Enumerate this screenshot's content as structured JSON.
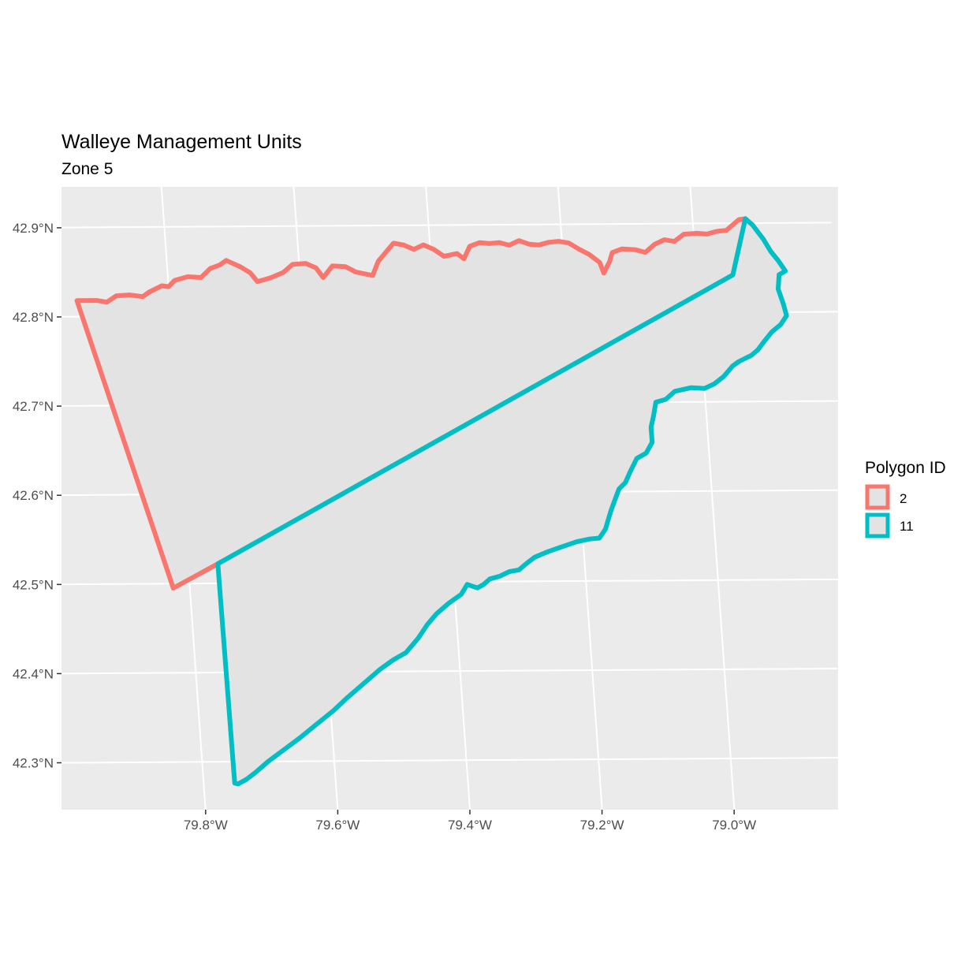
{
  "chart_data": {
    "type": "map",
    "title": "Walleye Management Units",
    "subtitle": "Zone 5",
    "xlabel": "",
    "ylabel": "",
    "x_ticks": [
      "79.8°W",
      "79.6°W",
      "79.4°W",
      "79.2°W",
      "79.0°W"
    ],
    "x_tick_values": [
      -79.8,
      -79.6,
      -79.4,
      -79.2,
      -79.0
    ],
    "y_ticks": [
      "42.3°N",
      "42.4°N",
      "42.5°N",
      "42.6°N",
      "42.7°N",
      "42.8°N",
      "42.9°N"
    ],
    "y_tick_values": [
      42.3,
      42.4,
      42.5,
      42.6,
      42.7,
      42.8,
      42.9
    ],
    "xlim": [
      -79.99,
      -78.84
    ],
    "ylim": [
      42.25,
      42.94
    ],
    "grid": true,
    "legend": {
      "title": "Polygon ID",
      "position": "right",
      "entries": [
        {
          "label": "2",
          "color": "#F8766D"
        },
        {
          "label": "11",
          "color": "#00BFC4"
        }
      ]
    },
    "series": [
      {
        "name": "2",
        "color": "#F8766D",
        "points": [
          [
            -79.94,
            42.818
          ],
          [
            -79.91,
            42.818
          ],
          [
            -79.895,
            42.816
          ],
          [
            -79.88,
            42.823
          ],
          [
            -79.86,
            42.824
          ],
          [
            -79.84,
            42.822
          ],
          [
            -79.83,
            42.827
          ],
          [
            -79.81,
            42.834
          ],
          [
            -79.8,
            42.833
          ],
          [
            -79.79,
            42.84
          ],
          [
            -79.77,
            42.844
          ],
          [
            -79.75,
            42.843
          ],
          [
            -79.735,
            42.853
          ],
          [
            -79.72,
            42.857
          ],
          [
            -79.71,
            42.862
          ],
          [
            -79.69,
            42.855
          ],
          [
            -79.675,
            42.848
          ],
          [
            -79.665,
            42.838
          ],
          [
            -79.645,
            42.842
          ],
          [
            -79.625,
            42.848
          ],
          [
            -79.61,
            42.857
          ],
          [
            -79.59,
            42.858
          ],
          [
            -79.575,
            42.853
          ],
          [
            -79.565,
            42.842
          ],
          [
            -79.55,
            42.855
          ],
          [
            -79.53,
            42.854
          ],
          [
            -79.515,
            42.848
          ],
          [
            -79.49,
            42.844
          ],
          [
            -79.48,
            42.86
          ],
          [
            -79.465,
            42.872
          ],
          [
            -79.455,
            42.88
          ],
          [
            -79.44,
            42.878
          ],
          [
            -79.425,
            42.873
          ],
          [
            -79.41,
            42.878
          ],
          [
            -79.395,
            42.873
          ],
          [
            -79.38,
            42.865
          ],
          [
            -79.36,
            42.868
          ],
          [
            -79.35,
            42.862
          ],
          [
            -79.34,
            42.876
          ],
          [
            -79.325,
            42.88
          ],
          [
            -79.31,
            42.879
          ],
          [
            -79.295,
            42.88
          ],
          [
            -79.28,
            42.877
          ],
          [
            -79.265,
            42.882
          ],
          [
            -79.25,
            42.878
          ],
          [
            -79.235,
            42.877
          ],
          [
            -79.22,
            42.88
          ],
          [
            -79.205,
            42.881
          ],
          [
            -79.19,
            42.879
          ],
          [
            -79.175,
            42.872
          ],
          [
            -79.16,
            42.866
          ],
          [
            -79.145,
            42.857
          ],
          [
            -79.14,
            42.845
          ],
          [
            -79.13,
            42.858
          ],
          [
            -79.125,
            42.868
          ],
          [
            -79.11,
            42.872
          ],
          [
            -79.09,
            42.871
          ],
          [
            -79.075,
            42.868
          ],
          [
            -79.06,
            42.877
          ],
          [
            -79.045,
            42.882
          ],
          [
            -79.03,
            42.88
          ],
          [
            -79.015,
            42.888
          ],
          [
            -78.995,
            42.889
          ],
          [
            -78.98,
            42.888
          ],
          [
            -78.965,
            42.891
          ],
          [
            -78.95,
            42.892
          ],
          [
            -78.93,
            42.904
          ],
          [
            -78.92,
            42.905
          ],
          [
            -78.945,
            42.842
          ],
          [
            -79.755,
            42.522
          ],
          [
            -79.825,
            42.495
          ],
          [
            -79.94,
            42.818
          ]
        ]
      },
      {
        "name": "11",
        "color": "#00BFC4",
        "points": [
          [
            -79.755,
            42.522
          ],
          [
            -78.945,
            42.842
          ],
          [
            -78.92,
            42.905
          ],
          [
            -78.91,
            42.898
          ],
          [
            -78.895,
            42.882
          ],
          [
            -78.885,
            42.868
          ],
          [
            -78.875,
            42.858
          ],
          [
            -78.865,
            42.846
          ],
          [
            -78.875,
            42.842
          ],
          [
            -78.878,
            42.826
          ],
          [
            -78.872,
            42.81
          ],
          [
            -78.868,
            42.796
          ],
          [
            -78.878,
            42.786
          ],
          [
            -78.892,
            42.778
          ],
          [
            -78.905,
            42.767
          ],
          [
            -78.915,
            42.758
          ],
          [
            -78.925,
            42.752
          ],
          [
            -78.945,
            42.745
          ],
          [
            -78.955,
            42.74
          ],
          [
            -78.97,
            42.728
          ],
          [
            -78.985,
            42.72
          ],
          [
            -79.0,
            42.715
          ],
          [
            -79.02,
            42.716
          ],
          [
            -79.045,
            42.712
          ],
          [
            -79.06,
            42.703
          ],
          [
            -79.075,
            42.7
          ],
          [
            -79.08,
            42.685
          ],
          [
            -79.085,
            42.672
          ],
          [
            -79.085,
            42.655
          ],
          [
            -79.095,
            42.643
          ],
          [
            -79.11,
            42.637
          ],
          [
            -79.12,
            42.624
          ],
          [
            -79.13,
            42.61
          ],
          [
            -79.14,
            42.603
          ],
          [
            -79.148,
            42.59
          ],
          [
            -79.155,
            42.578
          ],
          [
            -79.165,
            42.558
          ],
          [
            -79.175,
            42.548
          ],
          [
            -79.19,
            42.547
          ],
          [
            -79.21,
            42.544
          ],
          [
            -79.235,
            42.538
          ],
          [
            -79.255,
            42.533
          ],
          [
            -79.275,
            42.527
          ],
          [
            -79.29,
            42.519
          ],
          [
            -79.3,
            42.513
          ],
          [
            -79.315,
            42.511
          ],
          [
            -79.33,
            42.506
          ],
          [
            -79.345,
            42.503
          ],
          [
            -79.355,
            42.497
          ],
          [
            -79.365,
            42.493
          ],
          [
            -79.38,
            42.497
          ],
          [
            -79.39,
            42.486
          ],
          [
            -79.41,
            42.476
          ],
          [
            -79.43,
            42.464
          ],
          [
            -79.445,
            42.452
          ],
          [
            -79.46,
            42.437
          ],
          [
            -79.48,
            42.421
          ],
          [
            -79.5,
            42.413
          ],
          [
            -79.52,
            42.403
          ],
          [
            -79.545,
            42.388
          ],
          [
            -79.575,
            42.37
          ],
          [
            -79.595,
            42.357
          ],
          [
            -79.62,
            42.343
          ],
          [
            -79.65,
            42.326
          ],
          [
            -79.675,
            42.313
          ],
          [
            -79.7,
            42.3
          ],
          [
            -79.72,
            42.288
          ],
          [
            -79.735,
            42.28
          ],
          [
            -79.748,
            42.275
          ],
          [
            -79.753,
            42.276
          ],
          [
            -79.755,
            42.522
          ]
        ]
      }
    ]
  }
}
